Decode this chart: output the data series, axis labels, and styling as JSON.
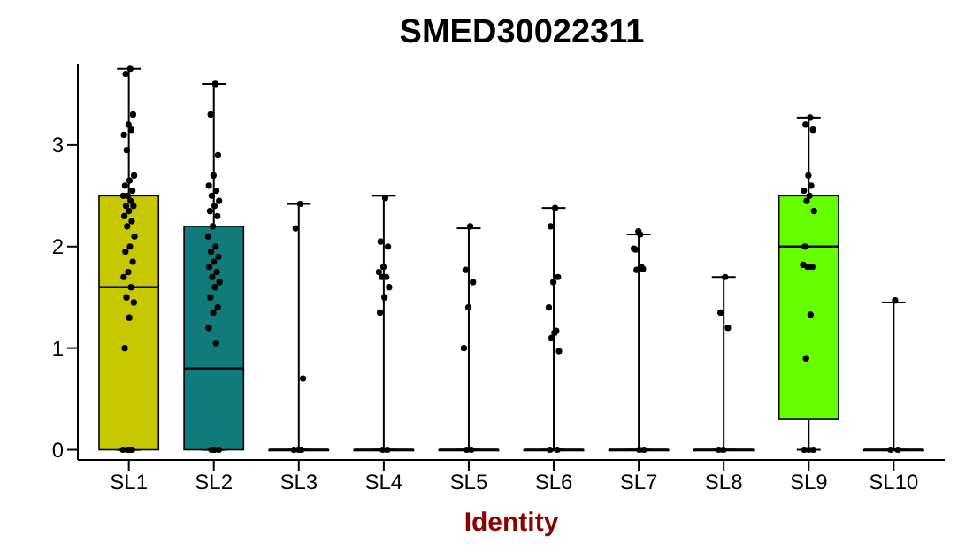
{
  "chart_data": {
    "type": "box",
    "title": "SMED30022311",
    "xlabel": "Identity",
    "categories": [
      "SL1",
      "SL2",
      "SL3",
      "SL4",
      "SL5",
      "SL6",
      "SL7",
      "SL8",
      "SL9",
      "SL10"
    ],
    "ylim": [
      -0.1,
      3.8
    ],
    "yticks": [
      0,
      1,
      2,
      3
    ],
    "grid": false,
    "legend": false,
    "series": [
      {
        "type": "box",
        "colors": [
          "#c8c800",
          "#117a7a",
          "#444444",
          "#444444",
          "#444444",
          "#444444",
          "#444444",
          "#444444",
          "#66ff00",
          "#444444"
        ],
        "boxes": [
          {
            "low": 0,
            "q1": 0,
            "median": 1.6,
            "q3": 2.5,
            "high": 3.75
          },
          {
            "low": 0,
            "q1": 0,
            "median": 0.8,
            "q3": 2.2,
            "high": 3.6
          },
          {
            "low": 0,
            "q1": 0,
            "median": 0,
            "q3": 0,
            "high": 2.42
          },
          {
            "low": 0,
            "q1": 0,
            "median": 0,
            "q3": 0,
            "high": 2.5
          },
          {
            "low": 0,
            "q1": 0,
            "median": 0,
            "q3": 0,
            "high": 2.18
          },
          {
            "low": 0,
            "q1": 0,
            "median": 0,
            "q3": 0,
            "high": 2.38
          },
          {
            "low": 0,
            "q1": 0,
            "median": 0,
            "q3": 0,
            "high": 2.12
          },
          {
            "low": 0,
            "q1": 0,
            "median": 0,
            "q3": 0,
            "high": 1.7
          },
          {
            "low": 0,
            "q1": 0.3,
            "median": 2.0,
            "q3": 2.5,
            "high": 3.27
          },
          {
            "low": 0,
            "q1": 0,
            "median": 0,
            "q3": 0,
            "high": 1.45
          }
        ]
      },
      {
        "type": "scatter",
        "color": "#000000",
        "x": [
          "SL1",
          "SL1",
          "SL1",
          "SL1",
          "SL1",
          "SL1",
          "SL1",
          "SL1",
          "SL1",
          "SL1",
          "SL1",
          "SL1",
          "SL1",
          "SL1",
          "SL1",
          "SL1",
          "SL1",
          "SL1",
          "SL1",
          "SL1",
          "SL1",
          "SL1",
          "SL1",
          "SL1",
          "SL1",
          "SL1",
          "SL1",
          "SL1",
          "SL1",
          "SL1",
          "SL1",
          "SL1",
          "SL1",
          "SL1",
          "SL1",
          "SL2",
          "SL2",
          "SL2",
          "SL2",
          "SL2",
          "SL2",
          "SL2",
          "SL2",
          "SL2",
          "SL2",
          "SL2",
          "SL2",
          "SL2",
          "SL2",
          "SL2",
          "SL2",
          "SL2",
          "SL2",
          "SL2",
          "SL2",
          "SL2",
          "SL2",
          "SL2",
          "SL2",
          "SL2",
          "SL2",
          "SL2",
          "SL2",
          "SL2",
          "SL2",
          "SL3",
          "SL3",
          "SL3",
          "SL3",
          "SL3",
          "SL3",
          "SL4",
          "SL4",
          "SL4",
          "SL4",
          "SL4",
          "SL4",
          "SL4",
          "SL4",
          "SL4",
          "SL4",
          "SL4",
          "SL4",
          "SL5",
          "SL5",
          "SL5",
          "SL5",
          "SL5",
          "SL5",
          "SL5",
          "SL6",
          "SL6",
          "SL6",
          "SL6",
          "SL6",
          "SL6",
          "SL6",
          "SL6",
          "SL6",
          "SL6",
          "SL6",
          "SL7",
          "SL7",
          "SL7",
          "SL7",
          "SL7",
          "SL7",
          "SL7",
          "SL7",
          "SL7",
          "SL8",
          "SL8",
          "SL8",
          "SL8",
          "SL8",
          "SL9",
          "SL9",
          "SL9",
          "SL9",
          "SL9",
          "SL9",
          "SL9",
          "SL9",
          "SL9",
          "SL9",
          "SL9",
          "SL9",
          "SL9",
          "SL9",
          "SL9",
          "SL9",
          "SL9",
          "SL9",
          "SL10",
          "SL10",
          "SL10"
        ],
        "values": [
          3.75,
          3.7,
          3.3,
          3.2,
          3.1,
          3.15,
          2.95,
          2.7,
          2.65,
          2.6,
          2.55,
          2.5,
          2.5,
          2.45,
          2.4,
          2.4,
          2.35,
          2.3,
          2.25,
          2.2,
          2.1,
          2.0,
          1.95,
          1.85,
          1.75,
          1.7,
          1.6,
          1.5,
          1.45,
          1.3,
          1.0,
          0,
          0,
          0,
          0,
          3.6,
          3.3,
          2.9,
          2.7,
          2.6,
          2.55,
          2.5,
          2.45,
          2.4,
          2.35,
          2.3,
          2.2,
          2.1,
          2.0,
          1.95,
          1.9,
          1.85,
          1.8,
          1.75,
          1.7,
          1.65,
          1.6,
          1.5,
          1.4,
          1.35,
          1.2,
          1.05,
          0,
          0,
          0,
          2.42,
          2.18,
          0.7,
          0,
          0,
          0,
          2.48,
          2.05,
          2.0,
          1.8,
          1.75,
          1.7,
          1.7,
          1.6,
          1.5,
          1.35,
          0,
          0,
          2.2,
          1.77,
          1.65,
          1.4,
          1.0,
          0,
          0,
          2.38,
          2.2,
          1.7,
          1.65,
          1.4,
          1.17,
          1.1,
          0.97,
          1.15,
          0,
          0,
          2.12,
          1.97,
          1.78,
          2.15,
          1.98,
          1.8,
          1.77,
          0,
          0,
          1.7,
          1.35,
          1.2,
          0,
          0,
          3.27,
          3.2,
          3.15,
          2.7,
          2.55,
          2.6,
          2.45,
          2.35,
          2.5,
          2.0,
          1.8,
          1.8,
          1.82,
          1.33,
          0.9,
          0,
          0,
          0,
          1.47,
          0,
          0
        ]
      }
    ]
  }
}
